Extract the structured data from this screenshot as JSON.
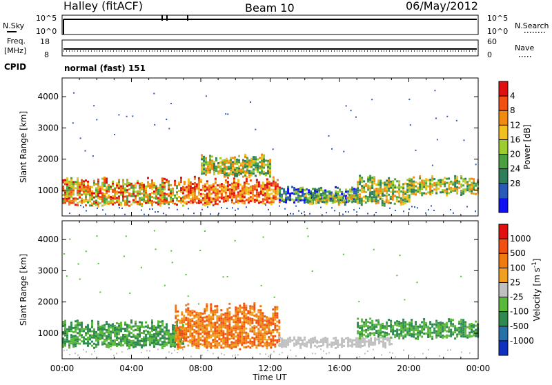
{
  "header": {
    "station": "Halley (fitACF)",
    "beam": "Beam 10",
    "date": "06/May/2012"
  },
  "top_panels": {
    "nsky_label": "N.Sky",
    "nsky_ticks": [
      "10^5",
      "10^0"
    ],
    "nsearch_label": "N.Search",
    "nsearch_ticks": [
      "10^5",
      "10^0"
    ],
    "freq_label_1": "Freq.",
    "freq_label_2": "[MHz]",
    "freq_ticks": [
      "18",
      "8"
    ],
    "nave_label": "Nave",
    "nave_ticks": [
      "60",
      "0"
    ],
    "cpid_label": "CPID",
    "cpid_text": "normal (fast) 151"
  },
  "chart_data": [
    {
      "type": "heatmap",
      "title": "",
      "xlabel": "Time UT",
      "ylabel": "Slant Range [km]",
      "x_ticks": [
        "00:00",
        "04:00",
        "08:00",
        "12:00",
        "16:00",
        "20:00",
        "00:00"
      ],
      "y_ticks": [
        1000,
        2000,
        3000,
        4000
      ],
      "xlim_hours": [
        0,
        24
      ],
      "ylim_km": [
        180,
        4600
      ],
      "colorbar": {
        "label": "Power [dB]",
        "ticks": [
          "4",
          "8",
          "12",
          "16",
          "20",
          "24",
          "28"
        ],
        "range": [
          0,
          30
        ],
        "colors": [
          "#1010f0",
          "#2a5ab8",
          "#2e7e5a",
          "#4aa040",
          "#9ccc30",
          "#f0c020",
          "#f08a10",
          "#f05010",
          "#e01010"
        ]
      },
      "echo_bands": [
        {
          "t_start": 0.0,
          "t_end": 7.0,
          "r_low": 560,
          "r_high": 1450,
          "level": "high"
        },
        {
          "t_start": 7.0,
          "t_end": 12.5,
          "r_low": 600,
          "r_high": 1500,
          "level": "very-high"
        },
        {
          "t_start": 8.0,
          "t_end": 12.0,
          "r_low": 1500,
          "r_high": 2200,
          "level": "medium"
        },
        {
          "t_start": 12.5,
          "t_end": 17.0,
          "r_low": 650,
          "r_high": 1150,
          "level": "low"
        },
        {
          "t_start": 14.0,
          "t_end": 20.0,
          "r_low": 600,
          "r_high": 900,
          "level": "medium"
        },
        {
          "t_start": 17.0,
          "t_end": 24.0,
          "r_low": 900,
          "r_high": 1500,
          "level": "medium"
        }
      ]
    },
    {
      "type": "heatmap",
      "title": "",
      "xlabel": "Time UT",
      "ylabel": "Slant Range [km]",
      "x_ticks": [
        "00:00",
        "04:00",
        "08:00",
        "12:00",
        "16:00",
        "20:00",
        "00:00"
      ],
      "y_ticks": [
        1000,
        2000,
        3000,
        4000
      ],
      "xlim_hours": [
        0,
        24
      ],
      "ylim_km": [
        180,
        4600
      ],
      "colorbar": {
        "label": "Velocity [m s^-1]",
        "ticks": [
          "1000",
          "500",
          "100",
          "25",
          "-25",
          "-100",
          "-500",
          "-1000"
        ],
        "colors": [
          "#1030c0",
          "#2a70a8",
          "#2e8a50",
          "#5ab83a",
          "#c0c0c0",
          "#f0a020",
          "#f07a10",
          "#f05010",
          "#e01010"
        ]
      },
      "echo_bands": [
        {
          "t_start": 0.0,
          "t_end": 7.0,
          "r_low": 600,
          "r_high": 1450,
          "level": "toward-slow"
        },
        {
          "t_start": 6.5,
          "t_end": 12.5,
          "r_low": 550,
          "r_high": 2000,
          "level": "away-medium"
        },
        {
          "t_start": 12.5,
          "t_end": 19.0,
          "r_low": 600,
          "r_high": 900,
          "level": "ground-scatter"
        },
        {
          "t_start": 17.0,
          "t_end": 24.0,
          "r_low": 900,
          "r_high": 1500,
          "level": "toward-slow"
        }
      ]
    }
  ]
}
